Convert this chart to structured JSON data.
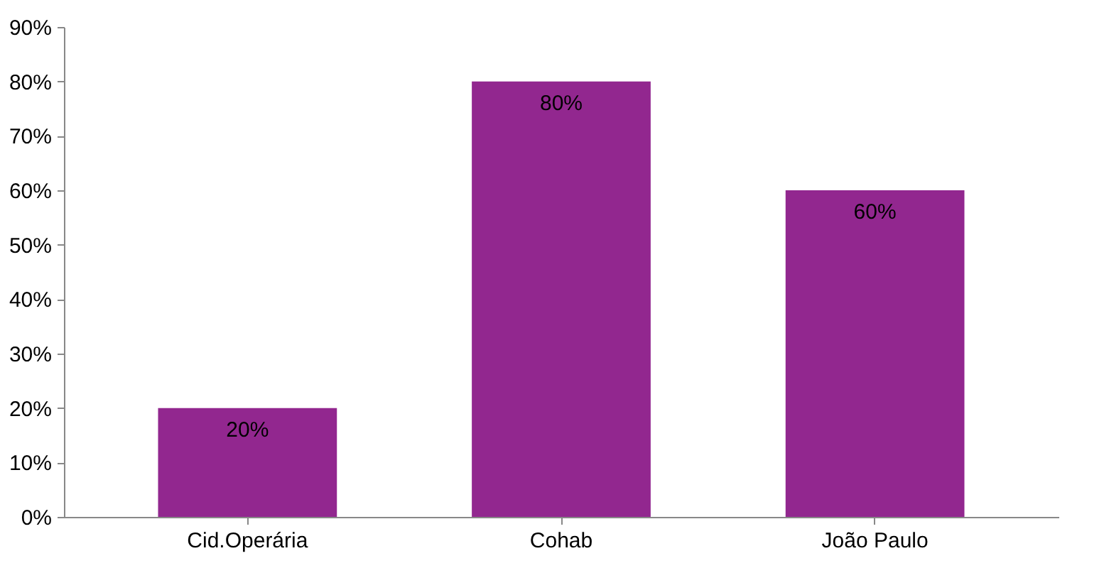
{
  "chart_data": {
    "type": "bar",
    "categories": [
      "Cid.Operária",
      "Cohab",
      "João Paulo"
    ],
    "values": [
      20,
      80,
      60
    ],
    "color": "#92278f",
    "value_labels": [
      "20%",
      "80%",
      "60%"
    ],
    "ylim": [
      0,
      90
    ],
    "yticks": [
      {
        "value": 0,
        "label": "0%"
      },
      {
        "value": 10,
        "label": "10%"
      },
      {
        "value": 20,
        "label": "20%"
      },
      {
        "value": 30,
        "label": "30%"
      },
      {
        "value": 40,
        "label": "40%"
      },
      {
        "value": 50,
        "label": "50%"
      },
      {
        "value": 60,
        "label": "60%"
      },
      {
        "value": 70,
        "label": "70%"
      },
      {
        "value": 80,
        "label": "80%"
      },
      {
        "value": 90,
        "label": "90%"
      }
    ],
    "grid": false
  }
}
